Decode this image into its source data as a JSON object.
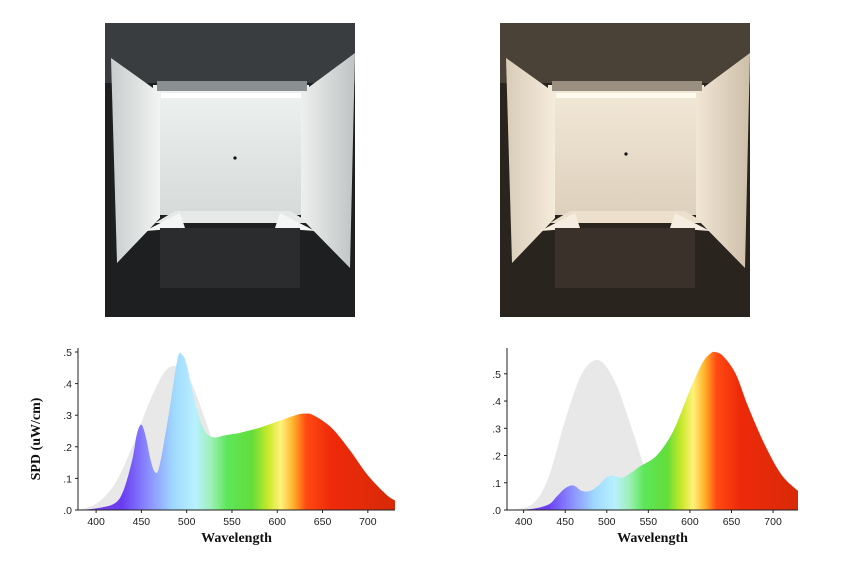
{
  "photos": {
    "left": {
      "description_icon": "light-booth-cool-icon",
      "wall_color": "#e9ebea",
      "ambient": "#1a1c1d"
    },
    "right": {
      "description_icon": "light-booth-warm-icon",
      "wall_color": "#efe4d2",
      "ambient": "#2b251f"
    }
  },
  "chart_data": [
    {
      "type": "area",
      "xlabel": "Wavelength",
      "ylabel": "SPD (uW/cm)",
      "xlim": [
        380,
        730
      ],
      "ylim": [
        0,
        0.5
      ],
      "xticks": [
        400,
        450,
        500,
        550,
        600,
        650,
        700
      ],
      "yticks": [
        ".0",
        ".1",
        ".2",
        ".3",
        ".4",
        ".5"
      ],
      "grid": false,
      "series": [
        {
          "x": [
            380,
            400,
            420,
            430,
            440,
            445,
            450,
            455,
            460,
            465,
            470,
            480,
            490,
            495,
            500,
            510,
            520,
            530,
            540,
            550,
            560,
            580,
            600,
            620,
            630,
            640,
            660,
            680,
            700,
            720,
            730
          ],
          "values": [
            0.0,
            0.005,
            0.02,
            0.06,
            0.16,
            0.24,
            0.27,
            0.23,
            0.16,
            0.12,
            0.14,
            0.3,
            0.48,
            0.49,
            0.46,
            0.33,
            0.25,
            0.23,
            0.235,
            0.24,
            0.245,
            0.26,
            0.28,
            0.3,
            0.305,
            0.3,
            0.26,
            0.19,
            0.11,
            0.05,
            0.03
          ]
        },
        {
          "x": [
            380,
            400,
            420,
            440,
            460,
            480,
            500,
            520,
            540,
            560
          ],
          "values": [
            0.0,
            0.02,
            0.08,
            0.2,
            0.35,
            0.45,
            0.43,
            0.29,
            0.12,
            0.03
          ]
        }
      ]
    },
    {
      "type": "area",
      "xlabel": "Wavelength",
      "ylabel": "",
      "xlim": [
        380,
        730
      ],
      "ylim": [
        0,
        0.58
      ],
      "xticks": [
        400,
        450,
        500,
        550,
        600,
        650,
        700
      ],
      "yticks": [
        ".0",
        ".1",
        ".2",
        ".3",
        ".4",
        ".5"
      ],
      "grid": false,
      "series": [
        {
          "x": [
            380,
            410,
            430,
            440,
            450,
            460,
            470,
            480,
            490,
            500,
            510,
            520,
            540,
            560,
            580,
            600,
            615,
            625,
            630,
            640,
            655,
            670,
            690,
            710,
            730
          ],
          "values": [
            0.0,
            0.004,
            0.02,
            0.05,
            0.08,
            0.09,
            0.07,
            0.07,
            0.09,
            0.12,
            0.125,
            0.12,
            0.16,
            0.2,
            0.29,
            0.44,
            0.54,
            0.575,
            0.58,
            0.565,
            0.5,
            0.38,
            0.24,
            0.13,
            0.07
          ]
        },
        {
          "x": [
            380,
            410,
            430,
            450,
            470,
            490,
            510,
            530,
            550,
            570
          ],
          "values": [
            0.0,
            0.02,
            0.12,
            0.33,
            0.5,
            0.55,
            0.47,
            0.3,
            0.12,
            0.03
          ]
        }
      ]
    }
  ]
}
